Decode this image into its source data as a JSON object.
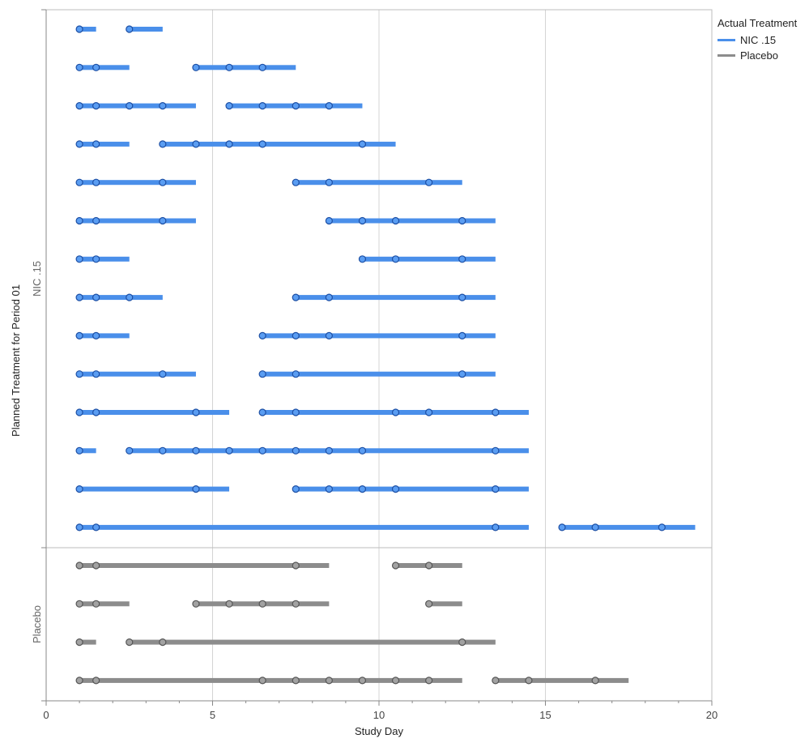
{
  "chart_data": {
    "type": "swimmer",
    "xlabel": "Study Day",
    "ylabel": "Planned Treatment for Period 01",
    "xlim": [
      0,
      20
    ],
    "xticks": [
      0,
      5,
      10,
      15,
      20
    ],
    "x_vertical_gridlines": true,
    "legend": {
      "title": "Actual Treatment",
      "placement": "top-right-outside",
      "entries": [
        {
          "name": "NIC .15",
          "color": "#4a8fea"
        },
        {
          "name": "Placebo",
          "color": "#8c8c8c"
        }
      ]
    },
    "colors": {
      "NIC .15": {
        "line": "#4a8fea",
        "marker_fill": "#5a9df2",
        "marker_edge": "#1c4ea3"
      },
      "Placebo": {
        "line": "#8c8c8c",
        "marker_fill": "#a2a2a2",
        "marker_edge": "#555555"
      }
    },
    "groups": [
      {
        "name": "NIC .15",
        "subjects": [
          {
            "segments": [
              {
                "start": 1,
                "end": 1.5,
                "treatment": "NIC .15"
              },
              {
                "start": 2.5,
                "end": 3.5,
                "treatment": "NIC .15"
              }
            ],
            "markers": [
              1,
              2.5
            ]
          },
          {
            "segments": [
              {
                "start": 1,
                "end": 2.5,
                "treatment": "NIC .15"
              },
              {
                "start": 4.5,
                "end": 7.5,
                "treatment": "NIC .15"
              }
            ],
            "markers": [
              1,
              1.5,
              4.5,
              5.5,
              6.5
            ]
          },
          {
            "segments": [
              {
                "start": 1,
                "end": 4.5,
                "treatment": "NIC .15"
              },
              {
                "start": 5.5,
                "end": 9.5,
                "treatment": "NIC .15"
              }
            ],
            "markers": [
              1,
              1.5,
              2.5,
              3.5,
              5.5,
              6.5,
              7.5,
              8.5
            ]
          },
          {
            "segments": [
              {
                "start": 1,
                "end": 2.5,
                "treatment": "NIC .15"
              },
              {
                "start": 3.5,
                "end": 10.5,
                "treatment": "NIC .15"
              }
            ],
            "markers": [
              1,
              1.5,
              3.5,
              4.5,
              5.5,
              6.5,
              9.5
            ]
          },
          {
            "segments": [
              {
                "start": 1,
                "end": 4.5,
                "treatment": "NIC .15"
              },
              {
                "start": 7.5,
                "end": 12.5,
                "treatment": "NIC .15"
              }
            ],
            "markers": [
              1,
              1.5,
              3.5,
              7.5,
              8.5,
              11.5
            ]
          },
          {
            "segments": [
              {
                "start": 1,
                "end": 4.5,
                "treatment": "NIC .15"
              },
              {
                "start": 8.5,
                "end": 13.5,
                "treatment": "NIC .15"
              }
            ],
            "markers": [
              1,
              1.5,
              3.5,
              8.5,
              9.5,
              10.5,
              12.5
            ]
          },
          {
            "segments": [
              {
                "start": 1,
                "end": 2.5,
                "treatment": "NIC .15"
              },
              {
                "start": 9.5,
                "end": 13.5,
                "treatment": "NIC .15"
              }
            ],
            "markers": [
              1,
              1.5,
              9.5,
              10.5,
              12.5
            ]
          },
          {
            "segments": [
              {
                "start": 1,
                "end": 3.5,
                "treatment": "NIC .15"
              },
              {
                "start": 7.5,
                "end": 13.5,
                "treatment": "NIC .15"
              }
            ],
            "markers": [
              1,
              1.5,
              2.5,
              7.5,
              8.5,
              12.5
            ]
          },
          {
            "segments": [
              {
                "start": 1,
                "end": 2.5,
                "treatment": "NIC .15"
              },
              {
                "start": 6.5,
                "end": 13.5,
                "treatment": "NIC .15"
              }
            ],
            "markers": [
              1,
              1.5,
              6.5,
              7.5,
              8.5,
              12.5
            ]
          },
          {
            "segments": [
              {
                "start": 1,
                "end": 4.5,
                "treatment": "NIC .15"
              },
              {
                "start": 6.5,
                "end": 13.5,
                "treatment": "NIC .15"
              }
            ],
            "markers": [
              1,
              1.5,
              3.5,
              6.5,
              7.5,
              12.5
            ]
          },
          {
            "segments": [
              {
                "start": 1,
                "end": 5.5,
                "treatment": "NIC .15"
              },
              {
                "start": 6.5,
                "end": 14.5,
                "treatment": "NIC .15"
              }
            ],
            "markers": [
              1,
              1.5,
              4.5,
              6.5,
              7.5,
              10.5,
              11.5,
              13.5
            ]
          },
          {
            "segments": [
              {
                "start": 1,
                "end": 1.5,
                "treatment": "NIC .15"
              },
              {
                "start": 2.5,
                "end": 14.5,
                "treatment": "NIC .15"
              }
            ],
            "markers": [
              1,
              2.5,
              3.5,
              4.5,
              5.5,
              6.5,
              7.5,
              8.5,
              9.5,
              13.5
            ]
          },
          {
            "segments": [
              {
                "start": 1,
                "end": 5.5,
                "treatment": "NIC .15"
              },
              {
                "start": 7.5,
                "end": 14.5,
                "treatment": "NIC .15"
              }
            ],
            "markers": [
              1,
              4.5,
              7.5,
              8.5,
              9.5,
              10.5,
              13.5
            ]
          },
          {
            "segments": [
              {
                "start": 1,
                "end": 14.5,
                "treatment": "NIC .15"
              },
              {
                "start": 15.5,
                "end": 19.5,
                "treatment": "NIC .15"
              }
            ],
            "markers": [
              1,
              1.5,
              13.5,
              15.5,
              16.5,
              18.5
            ]
          }
        ]
      },
      {
        "name": "Placebo",
        "subjects": [
          {
            "segments": [
              {
                "start": 1,
                "end": 8.5,
                "treatment": "Placebo"
              },
              {
                "start": 10.5,
                "end": 12.5,
                "treatment": "Placebo"
              }
            ],
            "markers": [
              1,
              1.5,
              7.5,
              10.5,
              11.5
            ]
          },
          {
            "segments": [
              {
                "start": 1,
                "end": 2.5,
                "treatment": "Placebo"
              },
              {
                "start": 4.5,
                "end": 8.5,
                "treatment": "Placebo"
              },
              {
                "start": 11.5,
                "end": 12.5,
                "treatment": "Placebo"
              }
            ],
            "markers": [
              1,
              1.5,
              4.5,
              5.5,
              6.5,
              7.5,
              11.5
            ]
          },
          {
            "segments": [
              {
                "start": 1,
                "end": 1.5,
                "treatment": "Placebo"
              },
              {
                "start": 2.5,
                "end": 13.5,
                "treatment": "Placebo"
              }
            ],
            "markers": [
              1,
              2.5,
              3.5,
              12.5
            ]
          },
          {
            "segments": [
              {
                "start": 1,
                "end": 12.5,
                "treatment": "Placebo"
              },
              {
                "start": 13.5,
                "end": 17.5,
                "treatment": "Placebo"
              }
            ],
            "markers": [
              1,
              1.5,
              6.5,
              7.5,
              8.5,
              9.5,
              10.5,
              11.5,
              13.5,
              14.5,
              16.5
            ]
          }
        ]
      }
    ]
  }
}
